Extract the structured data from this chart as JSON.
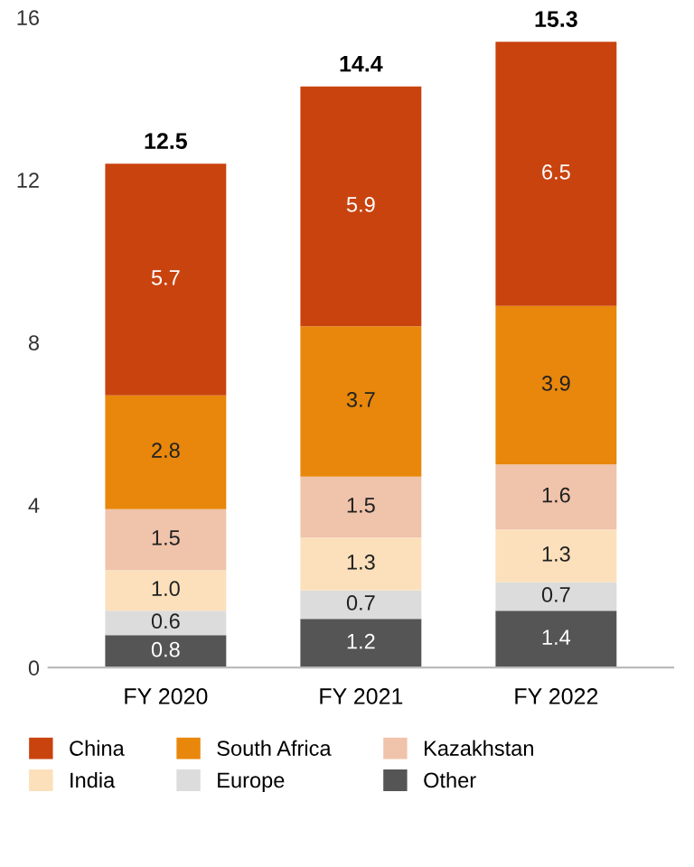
{
  "chart_data": {
    "type": "bar",
    "stacked": true,
    "categories": [
      "FY 2020",
      "FY 2021",
      "FY 2022"
    ],
    "series": [
      {
        "name": "Other",
        "color": "#555555",
        "values": [
          0.8,
          1.2,
          1.4
        ],
        "value_labels": [
          "0.8",
          "1.2",
          "1.4"
        ]
      },
      {
        "name": "Europe",
        "color": "#dcdcdc",
        "values": [
          0.6,
          0.7,
          0.7
        ],
        "value_labels": [
          "0.6",
          "0.7",
          "0.7"
        ]
      },
      {
        "name": "India",
        "color": "#fbe0bb",
        "values": [
          1.0,
          1.3,
          1.3
        ],
        "value_labels": [
          "1.0",
          "1.3",
          "1.3"
        ]
      },
      {
        "name": "Kazakhstan",
        "color": "#f0c3ab",
        "values": [
          1.5,
          1.5,
          1.6
        ],
        "value_labels": [
          "1.5",
          "1.5",
          "1.6"
        ]
      },
      {
        "name": "South Africa",
        "color": "#e8870b",
        "values": [
          2.8,
          3.7,
          3.9
        ],
        "value_labels": [
          "2.8",
          "3.7",
          "3.9"
        ]
      },
      {
        "name": "China",
        "color": "#c9430f",
        "values": [
          5.7,
          5.9,
          6.5
        ],
        "value_labels": [
          "5.7",
          "5.9",
          "6.5"
        ]
      }
    ],
    "totals": [
      "12.5",
      "14.4",
      "15.3"
    ],
    "ylim": [
      0,
      16
    ],
    "yticks": [
      0,
      4,
      8,
      12,
      16
    ],
    "grid": false,
    "legend": "bottom"
  }
}
